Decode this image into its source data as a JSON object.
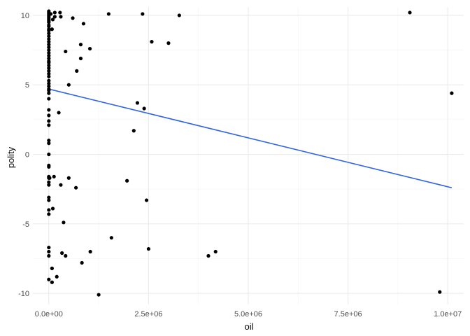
{
  "chart_data": {
    "type": "scatter",
    "title": "",
    "xlabel": "oil",
    "ylabel": "polity",
    "xlim": [
      -400000,
      10400000
    ],
    "ylim": [
      -10.8,
      10.6
    ],
    "grid": true,
    "x_ticks": [
      0,
      2500000,
      5000000,
      7500000,
      10000000
    ],
    "x_tick_labels": [
      "0.0e+00",
      "2.5e+06",
      "5.0e+06",
      "7.5e+06",
      "1.0e+07"
    ],
    "y_ticks": [
      -10,
      -5,
      0,
      5,
      10
    ],
    "y_tick_labels": [
      "-10",
      "-5",
      "0",
      "5",
      "10"
    ],
    "point_color": "#000000",
    "fit_line": {
      "color": "#3366dd",
      "x": [
        0,
        10100000
      ],
      "y": [
        4.7,
        -2.4
      ]
    },
    "points": [
      {
        "x": 0,
        "y": 10.3
      },
      {
        "x": 0,
        "y": 10.2
      },
      {
        "x": 0,
        "y": 10.1
      },
      {
        "x": 0,
        "y": 10.0
      },
      {
        "x": 0,
        "y": 9.9
      },
      {
        "x": 0,
        "y": 9.8
      },
      {
        "x": 0,
        "y": 9.7
      },
      {
        "x": 0,
        "y": 9.6
      },
      {
        "x": 0,
        "y": 9.5
      },
      {
        "x": 0,
        "y": 9.3
      },
      {
        "x": 0,
        "y": 9.2
      },
      {
        "x": 0,
        "y": 9.0
      },
      {
        "x": 0,
        "y": 8.9
      },
      {
        "x": 0,
        "y": 8.7
      },
      {
        "x": 0,
        "y": 8.5
      },
      {
        "x": 0,
        "y": 8.3
      },
      {
        "x": 0,
        "y": 8.1
      },
      {
        "x": 0,
        "y": 7.9
      },
      {
        "x": 0,
        "y": 7.7
      },
      {
        "x": 0,
        "y": 7.5
      },
      {
        "x": 0,
        "y": 7.3
      },
      {
        "x": 0,
        "y": 7.1
      },
      {
        "x": 0,
        "y": 6.9
      },
      {
        "x": 0,
        "y": 6.7
      },
      {
        "x": 0,
        "y": 6.6
      },
      {
        "x": 0,
        "y": 6.4
      },
      {
        "x": 0,
        "y": 6.2
      },
      {
        "x": 0,
        "y": 6.0
      },
      {
        "x": 0,
        "y": 5.8
      },
      {
        "x": 0,
        "y": 5.6
      },
      {
        "x": 0,
        "y": 5.3
      },
      {
        "x": 0,
        "y": 5.1
      },
      {
        "x": 0,
        "y": 4.9
      },
      {
        "x": 0,
        "y": 4.7
      },
      {
        "x": 0,
        "y": 4.6
      },
      {
        "x": 0,
        "y": 4.4
      },
      {
        "x": 0,
        "y": 4.0
      },
      {
        "x": 0,
        "y": 3.2
      },
      {
        "x": 0,
        "y": 2.8
      },
      {
        "x": 0,
        "y": 2.4
      },
      {
        "x": 0,
        "y": 2.1
      },
      {
        "x": 0,
        "y": 1.0
      },
      {
        "x": 0,
        "y": 0.8
      },
      {
        "x": 0,
        "y": 0.0
      },
      {
        "x": 0,
        "y": -0.8
      },
      {
        "x": 0,
        "y": -0.9
      },
      {
        "x": 0,
        "y": -1.6
      },
      {
        "x": 0,
        "y": -1.7
      },
      {
        "x": 0,
        "y": -2.0
      },
      {
        "x": 0,
        "y": -2.2
      },
      {
        "x": 0,
        "y": -3.1
      },
      {
        "x": 0,
        "y": -3.3
      },
      {
        "x": 0,
        "y": -4.0
      },
      {
        "x": 0,
        "y": -4.3
      },
      {
        "x": 0,
        "y": -6.7
      },
      {
        "x": 0,
        "y": -7.0
      },
      {
        "x": 0,
        "y": -7.3
      },
      {
        "x": 0,
        "y": -9.0
      },
      {
        "x": 50000,
        "y": 10.1
      },
      {
        "x": 80000,
        "y": 9.0
      },
      {
        "x": 100000,
        "y": 9.7
      },
      {
        "x": 150000,
        "y": 10.2
      },
      {
        "x": 150000,
        "y": 9.9
      },
      {
        "x": 280000,
        "y": 10.2
      },
      {
        "x": 300000,
        "y": 9.9
      },
      {
        "x": 600000,
        "y": 9.8
      },
      {
        "x": 870000,
        "y": 9.4
      },
      {
        "x": 420000,
        "y": 7.4
      },
      {
        "x": 800000,
        "y": 7.9
      },
      {
        "x": 1030000,
        "y": 7.6
      },
      {
        "x": 800000,
        "y": 6.9
      },
      {
        "x": 700000,
        "y": 6.0
      },
      {
        "x": 500000,
        "y": 5.0
      },
      {
        "x": 250000,
        "y": 3.0
      },
      {
        "x": 1500000,
        "y": 10.1
      },
      {
        "x": 2350000,
        "y": 10.1
      },
      {
        "x": 3270000,
        "y": 10.0
      },
      {
        "x": 2580000,
        "y": 8.1
      },
      {
        "x": 3000000,
        "y": 8.0
      },
      {
        "x": 2220000,
        "y": 3.7
      },
      {
        "x": 2390000,
        "y": 3.3
      },
      {
        "x": 2130000,
        "y": 1.7
      },
      {
        "x": 9050000,
        "y": 10.2
      },
      {
        "x": 10100000,
        "y": 4.4
      },
      {
        "x": 20000,
        "y": -1.7
      },
      {
        "x": 130000,
        "y": -1.6
      },
      {
        "x": 500000,
        "y": -1.7
      },
      {
        "x": 300000,
        "y": -2.2
      },
      {
        "x": 680000,
        "y": -2.4
      },
      {
        "x": 1960000,
        "y": -1.9
      },
      {
        "x": 2450000,
        "y": -3.3
      },
      {
        "x": 100000,
        "y": -3.9
      },
      {
        "x": 370000,
        "y": -4.9
      },
      {
        "x": 1570000,
        "y": -6.0
      },
      {
        "x": 1040000,
        "y": -7.0
      },
      {
        "x": 330000,
        "y": -7.1
      },
      {
        "x": 420000,
        "y": -7.3
      },
      {
        "x": 2500000,
        "y": -6.8
      },
      {
        "x": 4180000,
        "y": -7.0
      },
      {
        "x": 4000000,
        "y": -7.3
      },
      {
        "x": 830000,
        "y": -7.8
      },
      {
        "x": 80000,
        "y": -8.2
      },
      {
        "x": 200000,
        "y": -8.8
      },
      {
        "x": 80000,
        "y": -9.2
      },
      {
        "x": 1250000,
        "y": -10.1
      },
      {
        "x": 9800000,
        "y": -9.9
      }
    ]
  }
}
